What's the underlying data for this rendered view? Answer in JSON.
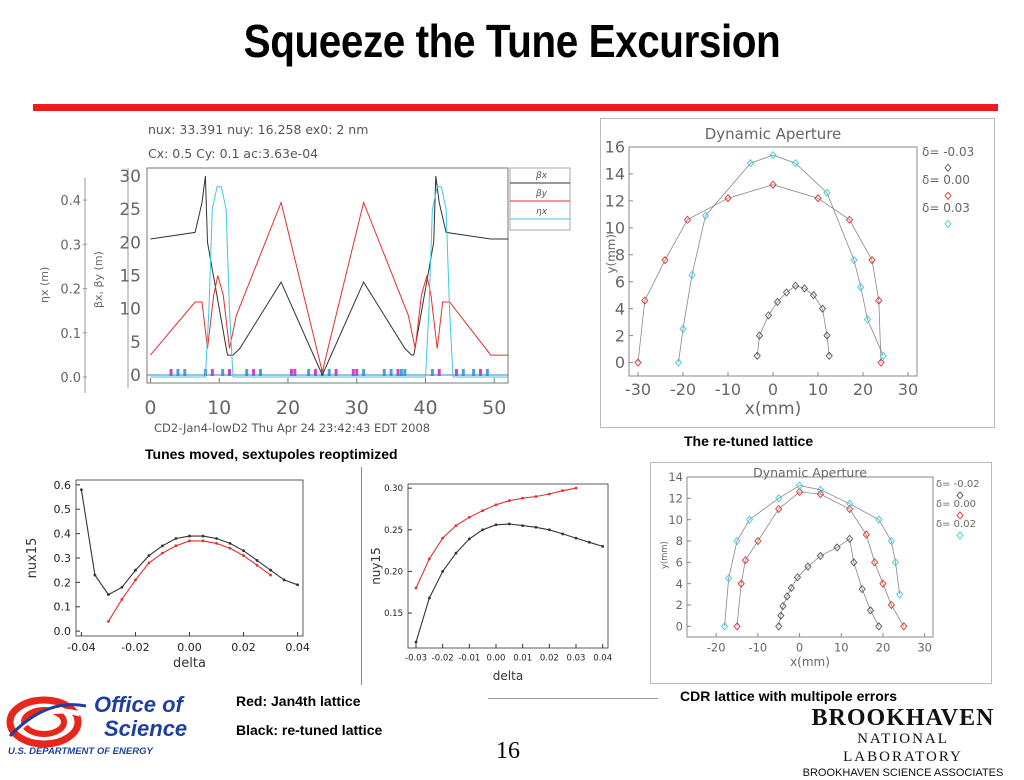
{
  "title": "Squeeze the Tune Excursion",
  "captions": {
    "lattice_plot": "Tunes moved, sextupoles reoptimized",
    "da_top": "The re-tuned lattice",
    "da_bottom": "CDR lattice with multipole errors",
    "legend_red": "Red: Jan4th lattice",
    "legend_black": "Black: re-tuned lattice"
  },
  "page_number": "16",
  "logos": {
    "doe_line1": "Office of",
    "doe_line2": "Science",
    "doe_line3": "U.S. DEPARTMENT OF ENERGY",
    "bnl_main": "BROOKHAVEN",
    "bnl_sub": "NATIONAL LABORATORY",
    "bnl_assoc": "BROOKHAVEN SCIENCE ASSOCIATES"
  },
  "colors": {
    "title_rule": "#ee1c1c",
    "series_black": "#333333",
    "series_red": "#e03030",
    "series_cyan": "#40c8e0",
    "doe_blue": "#1f3f9f"
  },
  "chart_data": [
    {
      "id": "lattice",
      "type": "line",
      "header": [
        "nux: 33.391  nuy: 16.258  ex0:    2 nm",
        "Cx:      0.5  Cy:      0.1  ac:3.63e-04"
      ],
      "footer": "CD2-Jan4-lowD2  Thu  Apr 24  23:42:43  EDT 2008",
      "ylabel_left": "ηx (m)",
      "ylabel_right": "βx, βy (m)",
      "ylim_eta": [
        0,
        0.45
      ],
      "ylim_beta": [
        0,
        30
      ],
      "xlim": [
        -0.5,
        52
      ],
      "x_ticks": [
        "0",
        "10",
        "20",
        "30",
        "40",
        "50"
      ],
      "eta_ticks": [
        "0.4",
        "0.3",
        "0.2",
        "0.1",
        "0.0"
      ],
      "beta_ticks": [
        "30",
        "25",
        "20",
        "15",
        "10",
        "5",
        "0"
      ],
      "legend": [
        "βx",
        "βy",
        "ηx"
      ],
      "series": [
        {
          "name": "βx",
          "x": [
            0,
            6.5,
            7.5,
            8,
            8.3,
            11.2,
            11.5,
            12,
            13,
            19,
            25,
            31,
            37,
            38,
            38.3,
            41.2,
            41.5,
            42,
            43,
            49.5,
            52
          ],
          "y": [
            20.5,
            21.5,
            26,
            30,
            20,
            3,
            3,
            3,
            4,
            14,
            0,
            14,
            4,
            3,
            3,
            20,
            30,
            26,
            21.5,
            20.5,
            20.5
          ]
        },
        {
          "name": "βy",
          "x": [
            0,
            6.5,
            7.5,
            8.3,
            9.2,
            9.8,
            10.6,
            11.5,
            12.5,
            19,
            25,
            31,
            37.5,
            38.5,
            39.4,
            40.2,
            40.8,
            41.7,
            42.5,
            43.5,
            49.5,
            52
          ],
          "y": [
            3,
            11,
            11,
            4,
            12,
            15,
            12,
            4,
            9,
            26,
            0.5,
            26,
            9,
            4,
            12,
            15,
            12,
            4,
            11,
            11,
            3,
            3
          ]
        },
        {
          "name": "ηx",
          "x": [
            0,
            8,
            8.5,
            9,
            9.7,
            10.3,
            11,
            11.5,
            12,
            40,
            40.5,
            41,
            41.7,
            42.3,
            43,
            43.5,
            44,
            52
          ],
          "y": [
            0,
            0,
            0.15,
            0.38,
            0.43,
            0.43,
            0.38,
            0.15,
            0,
            0,
            0.15,
            0.38,
            0.43,
            0.43,
            0.38,
            0.15,
            0,
            0
          ]
        }
      ],
      "magnets_x": [
        3,
        4,
        5,
        8,
        9,
        10.5,
        11.5,
        14,
        15,
        16,
        20.5,
        21,
        23,
        24,
        25,
        26,
        27,
        29.5,
        30,
        31,
        34,
        35,
        36,
        36.5,
        37,
        41,
        42,
        44.5,
        45.5,
        47,
        48,
        49
      ]
    },
    {
      "id": "da_top",
      "type": "line",
      "title": "Dynamic Aperture",
      "xlabel": "x(mm)",
      "ylabel": "y(mm)",
      "xlim": [
        -32,
        32
      ],
      "ylim": [
        -1,
        16
      ],
      "x_ticks": [
        "-30",
        "-20",
        "-10",
        "0",
        "10",
        "20",
        "30"
      ],
      "y_ticks": [
        "16",
        "14",
        "12",
        "10",
        "8",
        "6",
        "4",
        "2",
        "0"
      ],
      "legend": [
        "δ= -0.03",
        "δ=  0.00",
        "δ=  0.03"
      ],
      "series": [
        {
          "name": "δ= -0.03",
          "x": [
            -3.5,
            -3,
            -1,
            1,
            3,
            5,
            7,
            9,
            11,
            12,
            12.5
          ],
          "y": [
            0.5,
            2,
            3.5,
            4.5,
            5.2,
            5.7,
            5.5,
            5,
            4,
            2,
            0.5
          ]
        },
        {
          "name": "δ=  0.00",
          "x": [
            -30,
            -28.5,
            -24,
            -19,
            -10,
            0,
            10,
            17,
            22,
            23.5,
            24
          ],
          "y": [
            0,
            4.6,
            7.6,
            10.6,
            12.2,
            13.2,
            12.2,
            10.6,
            7.6,
            4.6,
            0
          ]
        },
        {
          "name": "δ=  0.03",
          "x": [
            -21,
            -20,
            -18,
            -15,
            -5,
            0,
            5,
            12,
            18,
            19.5,
            21,
            24.5
          ],
          "y": [
            0,
            2.5,
            6.5,
            10.9,
            14.8,
            15.4,
            14.8,
            12.6,
            7.6,
            5.6,
            3.2,
            0.5
          ]
        }
      ]
    },
    {
      "id": "nux",
      "type": "line",
      "xlabel": "delta",
      "ylabel": "nux15",
      "xlim": [
        -0.042,
        0.042
      ],
      "ylim": [
        -0.02,
        0.62
      ],
      "x_ticks": [
        "-0.04",
        "-0.02",
        "0.00",
        "0.02",
        "0.04"
      ],
      "y_ticks": [
        "0.6",
        "0.5",
        "0.4",
        "0.3",
        "0.2",
        "0.1",
        "0.0"
      ],
      "series": [
        {
          "name": "black",
          "x": [
            -0.04,
            -0.035,
            -0.03,
            -0.025,
            -0.02,
            -0.015,
            -0.01,
            -0.005,
            0,
            0.005,
            0.01,
            0.015,
            0.02,
            0.025,
            0.03,
            0.035,
            0.04
          ],
          "y": [
            0.58,
            0.23,
            0.15,
            0.18,
            0.25,
            0.31,
            0.35,
            0.38,
            0.39,
            0.39,
            0.38,
            0.36,
            0.33,
            0.29,
            0.25,
            0.21,
            0.19
          ]
        },
        {
          "name": "red",
          "x": [
            -0.03,
            -0.025,
            -0.02,
            -0.015,
            -0.01,
            -0.005,
            0,
            0.005,
            0.01,
            0.015,
            0.02,
            0.025,
            0.03
          ],
          "y": [
            0.04,
            0.13,
            0.21,
            0.28,
            0.32,
            0.35,
            0.37,
            0.37,
            0.36,
            0.34,
            0.31,
            0.27,
            0.23
          ]
        }
      ]
    },
    {
      "id": "nuy",
      "type": "line",
      "xlabel": "delta",
      "ylabel": "nuy15",
      "xlim": [
        -0.033,
        0.042
      ],
      "ylim": [
        0.108,
        0.305
      ],
      "x_ticks": [
        "-0.03",
        "-0.02",
        "-0.01",
        "0.00",
        "0.01",
        "0.02",
        "0.03",
        "0.04"
      ],
      "y_ticks": [
        "0.30",
        "0.25",
        "0.20",
        "0.15"
      ],
      "series": [
        {
          "name": "black",
          "x": [
            -0.03,
            -0.025,
            -0.02,
            -0.015,
            -0.01,
            -0.005,
            0,
            0.005,
            0.01,
            0.015,
            0.02,
            0.025,
            0.03,
            0.035,
            0.04
          ],
          "y": [
            0.115,
            0.168,
            0.2,
            0.222,
            0.239,
            0.25,
            0.256,
            0.257,
            0.255,
            0.253,
            0.25,
            0.245,
            0.24,
            0.235,
            0.23
          ]
        },
        {
          "name": "red",
          "x": [
            -0.03,
            -0.025,
            -0.02,
            -0.015,
            -0.01,
            -0.005,
            0,
            0.005,
            0.01,
            0.015,
            0.02,
            0.025,
            0.03
          ],
          "y": [
            0.18,
            0.215,
            0.24,
            0.255,
            0.265,
            0.273,
            0.28,
            0.285,
            0.288,
            0.29,
            0.293,
            0.297,
            0.3
          ]
        }
      ]
    },
    {
      "id": "da_bottom",
      "type": "line",
      "title": "Dynamic Aperture",
      "xlabel": "x(mm)",
      "ylabel": "y(mm)",
      "xlim": [
        -27,
        32
      ],
      "ylim": [
        -1,
        14
      ],
      "x_ticks": [
        "-20",
        "-10",
        "0",
        "10",
        "20",
        "30"
      ],
      "y_ticks": [
        "14",
        "12",
        "10",
        "8",
        "6",
        "4",
        "2",
        "0"
      ],
      "legend": [
        "δ= -0.02",
        "δ=  0.00",
        "δ=  0.02"
      ],
      "series": [
        {
          "name": "δ= -0.02",
          "x": [
            -5,
            -4.5,
            -4,
            -3,
            -2,
            -0.5,
            2,
            5,
            9,
            12,
            13,
            15,
            17,
            19
          ],
          "y": [
            0,
            1,
            1.9,
            2.8,
            3.6,
            4.6,
            5.6,
            6.6,
            7.4,
            8.2,
            6,
            3.5,
            1.5,
            0
          ]
        },
        {
          "name": "δ=  0.00",
          "x": [
            -15,
            -14,
            -13,
            -10,
            -5,
            0,
            5,
            12,
            16,
            18,
            20,
            22,
            25
          ],
          "y": [
            0,
            4,
            6.2,
            8,
            11,
            12.6,
            12.4,
            11,
            8.6,
            6,
            4,
            2,
            0
          ]
        },
        {
          "name": "δ=  0.02",
          "x": [
            -18,
            -17,
            -15,
            -12,
            -5,
            0,
            5,
            12,
            19,
            22,
            23,
            24
          ],
          "y": [
            0,
            4.5,
            8,
            10,
            12,
            13.2,
            12.8,
            11.5,
            10,
            8,
            6,
            3
          ]
        }
      ]
    }
  ]
}
